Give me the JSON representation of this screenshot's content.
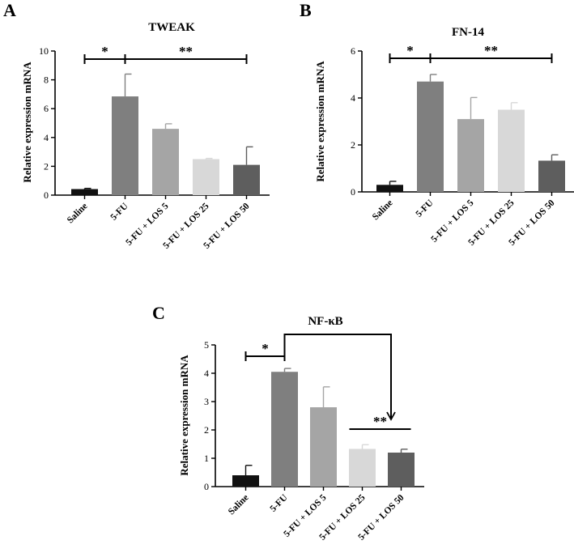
{
  "chart_data": [
    {
      "panel": "A",
      "type": "bar",
      "title": "TWEAK",
      "ylabel": "Relative expression mRNA",
      "categories": [
        "Saline",
        "5-FU",
        "5-FU + LOS 5",
        "5-FU + LOS 25",
        "5-FU + LOS 50"
      ],
      "values": [
        0.42,
        6.85,
        4.6,
        2.5,
        2.1
      ],
      "errors": [
        0.05,
        1.55,
        0.35,
        0.05,
        1.25
      ],
      "colors": [
        "#111111",
        "#7f7f7f",
        "#a5a5a5",
        "#d8d8d8",
        "#5e5e5e"
      ],
      "ylim": [
        0,
        10
      ],
      "yticks": [
        0,
        2,
        4,
        6,
        8,
        10
      ],
      "significance": [
        {
          "label": "*",
          "from": 0,
          "to": 1
        },
        {
          "label": "**",
          "from": 1,
          "to": 4
        }
      ]
    },
    {
      "panel": "B",
      "type": "bar",
      "title": "FN-14",
      "ylabel": "Relative expression mRNA",
      "categories": [
        "Saline",
        "5-FU",
        "5-FU + LOS 5",
        "5-FU + LOS 25",
        "5-FU + LOS 50"
      ],
      "values": [
        0.3,
        4.7,
        3.1,
        3.5,
        1.33
      ],
      "errors": [
        0.15,
        0.3,
        0.92,
        0.3,
        0.25
      ],
      "colors": [
        "#111111",
        "#7f7f7f",
        "#a5a5a5",
        "#d8d8d8",
        "#5e5e5e"
      ],
      "ylim": [
        0,
        6
      ],
      "yticks": [
        0,
        2,
        4,
        6
      ],
      "significance": [
        {
          "label": "*",
          "from": 0,
          "to": 1
        },
        {
          "label": "**",
          "from": 1,
          "to": 4
        }
      ]
    },
    {
      "panel": "C",
      "type": "bar",
      "title": "NF-κB",
      "ylabel": "Relative expression mRNA",
      "categories": [
        "Saline",
        "5-FU",
        "5-FU + LOS 5",
        "5-FU + LOS 25",
        "5-FU + LOS 50"
      ],
      "values": [
        0.4,
        4.05,
        2.8,
        1.33,
        1.2
      ],
      "errors": [
        0.35,
        0.12,
        0.72,
        0.15,
        0.12
      ],
      "colors": [
        "#111111",
        "#7f7f7f",
        "#a5a5a5",
        "#d8d8d8",
        "#5e5e5e"
      ],
      "ylim": [
        0,
        5
      ],
      "yticks": [
        0,
        1,
        2,
        3,
        4,
        5
      ],
      "significance": [
        {
          "label": "*",
          "from": 0,
          "to": 1
        },
        {
          "label": "**",
          "from": 3,
          "to": 4
        }
      ]
    }
  ]
}
